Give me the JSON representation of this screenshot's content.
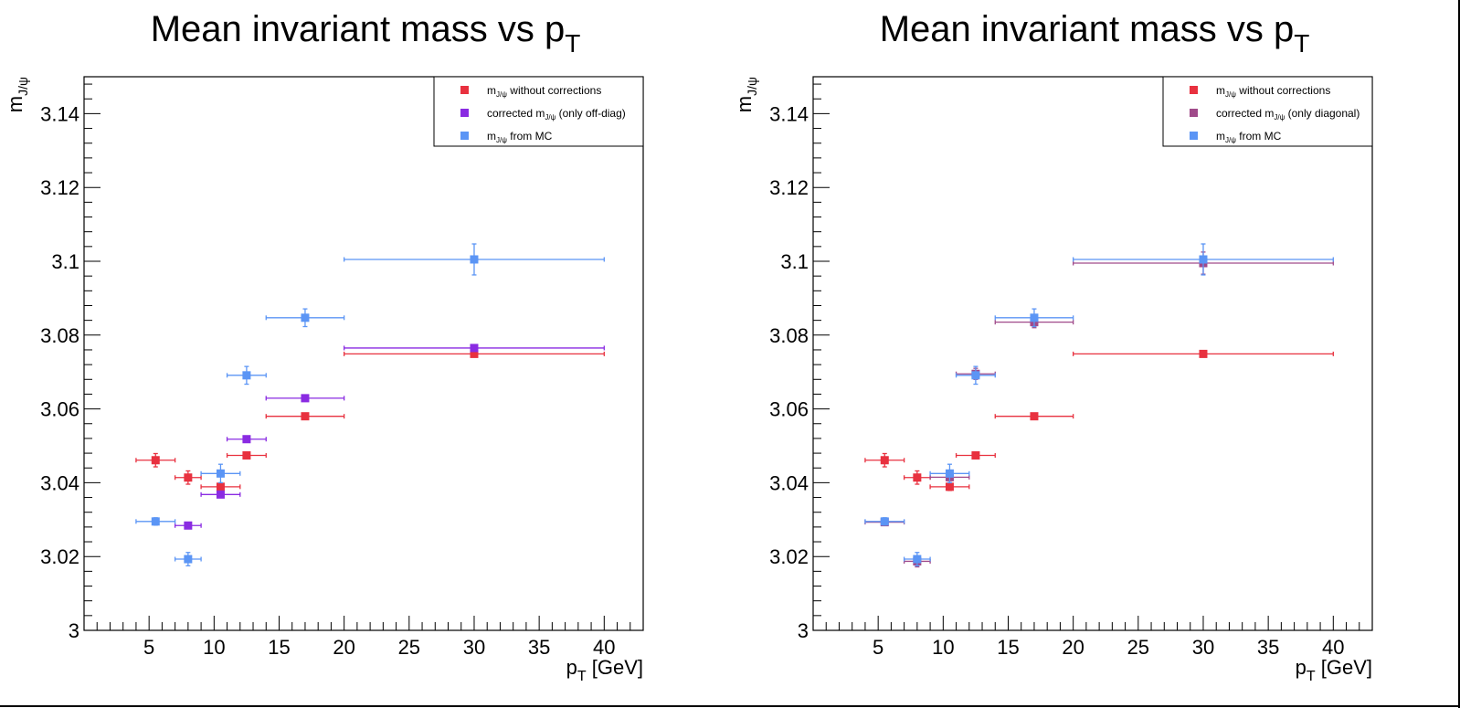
{
  "colors": {
    "red": "#e8313f",
    "purple": "#8a2be2",
    "mauve": "#a04a8a",
    "blue": "#5b95f5"
  },
  "chart_data": [
    {
      "type": "scatter",
      "title": "Mean invariant mass vs p",
      "title_sub": "T",
      "xlabel": "p",
      "xlabel_sub": "T",
      "xlabel_suffix": " [GeV]",
      "ylabel": "m",
      "ylabel_sub": "J/ψ",
      "xlim": [
        0,
        43
      ],
      "ylim": [
        3.0,
        3.15
      ],
      "xticks": [
        5,
        10,
        15,
        20,
        25,
        30,
        35,
        40
      ],
      "xtick_labels": [
        "5",
        "10",
        "15",
        "20",
        "25",
        "30",
        "35",
        "40"
      ],
      "yticks": [
        3.0,
        3.02,
        3.04,
        3.06,
        3.08,
        3.1,
        3.12,
        3.14
      ],
      "ytick_labels": [
        "3",
        "3.02",
        "3.04",
        "3.06",
        "3.08",
        "3.1",
        "3.12",
        "3.14"
      ],
      "grid": false,
      "legend_position": "top-right",
      "series": [
        {
          "name": "without corrections",
          "legend_prefix": "m",
          "legend_sub": "J/ψ",
          "legend_suffix": " without corrections",
          "color": "#e8313f",
          "points": [
            {
              "x": 5.5,
              "y": 3.0461,
              "xerr": 1.5,
              "yerr": 0.0018
            },
            {
              "x": 8.0,
              "y": 3.0414,
              "xerr": 1.0,
              "yerr": 0.0018
            },
            {
              "x": 10.5,
              "y": 3.0389,
              "xerr": 1.5,
              "yerr": 0.001
            },
            {
              "x": 12.5,
              "y": 3.0474,
              "xerr": 1.5,
              "yerr": 0.0005
            },
            {
              "x": 17.0,
              "y": 3.058,
              "xerr": 3.0,
              "yerr": 0.0005
            },
            {
              "x": 30.0,
              "y": 3.0749,
              "xerr": 10.0,
              "yerr": 0.0004
            }
          ]
        },
        {
          "name": "corrected (only off-diag)",
          "legend_prefix": "corrected m",
          "legend_sub": "J/ψ",
          "legend_suffix": " (only off-diag)",
          "color": "#8a2be2",
          "points": [
            {
              "x": 8.0,
              "y": 3.0284,
              "xerr": 1.0,
              "yerr": 0.0005
            },
            {
              "x": 10.5,
              "y": 3.0368,
              "xerr": 1.5,
              "yerr": 0.0005
            },
            {
              "x": 12.5,
              "y": 3.0518,
              "xerr": 1.5,
              "yerr": 0.0005
            },
            {
              "x": 17.0,
              "y": 3.0629,
              "xerr": 3.0,
              "yerr": 0.0005
            },
            {
              "x": 30.0,
              "y": 3.0765,
              "xerr": 10.0,
              "yerr": 0.0005
            }
          ]
        },
        {
          "name": "from MC",
          "legend_prefix": "m",
          "legend_sub": "J/ψ",
          "legend_suffix": " from MC",
          "color": "#5b95f5",
          "points": [
            {
              "x": 5.5,
              "y": 3.0295,
              "xerr": 1.5,
              "yerr": 0.001
            },
            {
              "x": 8.0,
              "y": 3.0193,
              "xerr": 1.0,
              "yerr": 0.0018
            },
            {
              "x": 10.5,
              "y": 3.0425,
              "xerr": 1.5,
              "yerr": 0.0025
            },
            {
              "x": 12.5,
              "y": 3.0691,
              "xerr": 1.5,
              "yerr": 0.0024
            },
            {
              "x": 17.0,
              "y": 3.0847,
              "xerr": 3.0,
              "yerr": 0.0024
            },
            {
              "x": 30.0,
              "y": 3.1005,
              "xerr": 10.0,
              "yerr": 0.0042
            }
          ]
        }
      ]
    },
    {
      "type": "scatter",
      "title": "Mean invariant mass vs p",
      "title_sub": "T",
      "xlabel": "p",
      "xlabel_sub": "T",
      "xlabel_suffix": " [GeV]",
      "ylabel": "m",
      "ylabel_sub": "J/ψ",
      "xlim": [
        0,
        43
      ],
      "ylim": [
        3.0,
        3.15
      ],
      "xticks": [
        5,
        10,
        15,
        20,
        25,
        30,
        35,
        40
      ],
      "xtick_labels": [
        "5",
        "10",
        "15",
        "20",
        "25",
        "30",
        "35",
        "40"
      ],
      "yticks": [
        3.0,
        3.02,
        3.04,
        3.06,
        3.08,
        3.1,
        3.12,
        3.14
      ],
      "ytick_labels": [
        "3",
        "3.02",
        "3.04",
        "3.06",
        "3.08",
        "3.1",
        "3.12",
        "3.14"
      ],
      "grid": false,
      "legend_position": "top-right",
      "series": [
        {
          "name": "without corrections",
          "legend_prefix": "m",
          "legend_sub": "J/ψ",
          "legend_suffix": " without corrections",
          "color": "#e8313f",
          "points": [
            {
              "x": 5.5,
              "y": 3.0461,
              "xerr": 1.5,
              "yerr": 0.0018
            },
            {
              "x": 8.0,
              "y": 3.0414,
              "xerr": 1.0,
              "yerr": 0.0018
            },
            {
              "x": 10.5,
              "y": 3.0389,
              "xerr": 1.5,
              "yerr": 0.001
            },
            {
              "x": 12.5,
              "y": 3.0474,
              "xerr": 1.5,
              "yerr": 0.0005
            },
            {
              "x": 17.0,
              "y": 3.058,
              "xerr": 3.0,
              "yerr": 0.0005
            },
            {
              "x": 30.0,
              "y": 3.0749,
              "xerr": 10.0,
              "yerr": 0.0004
            }
          ]
        },
        {
          "name": "corrected (only diagonal)",
          "legend_prefix": "corrected m",
          "legend_sub": "J/ψ",
          "legend_suffix": " (only diagonal)",
          "color": "#a04a8a",
          "points": [
            {
              "x": 5.5,
              "y": 3.0293,
              "xerr": 1.5,
              "yerr": 0.0008
            },
            {
              "x": 8.0,
              "y": 3.0187,
              "xerr": 1.0,
              "yerr": 0.0015
            },
            {
              "x": 10.5,
              "y": 3.0415,
              "xerr": 1.5,
              "yerr": 0.0015
            },
            {
              "x": 12.5,
              "y": 3.0695,
              "xerr": 1.5,
              "yerr": 0.0015
            },
            {
              "x": 17.0,
              "y": 3.0835,
              "xerr": 3.0,
              "yerr": 0.0015
            },
            {
              "x": 30.0,
              "y": 3.0995,
              "xerr": 10.0,
              "yerr": 0.003
            }
          ]
        },
        {
          "name": "from MC",
          "legend_prefix": "m",
          "legend_sub": "J/ψ",
          "legend_suffix": " from MC",
          "color": "#5b95f5",
          "points": [
            {
              "x": 5.5,
              "y": 3.0295,
              "xerr": 1.5,
              "yerr": 0.001
            },
            {
              "x": 8.0,
              "y": 3.0193,
              "xerr": 1.0,
              "yerr": 0.0018
            },
            {
              "x": 10.5,
              "y": 3.0425,
              "xerr": 1.5,
              "yerr": 0.0025
            },
            {
              "x": 12.5,
              "y": 3.0691,
              "xerr": 1.5,
              "yerr": 0.0024
            },
            {
              "x": 17.0,
              "y": 3.0847,
              "xerr": 3.0,
              "yerr": 0.0024
            },
            {
              "x": 30.0,
              "y": 3.1005,
              "xerr": 10.0,
              "yerr": 0.0042
            }
          ]
        }
      ]
    }
  ]
}
